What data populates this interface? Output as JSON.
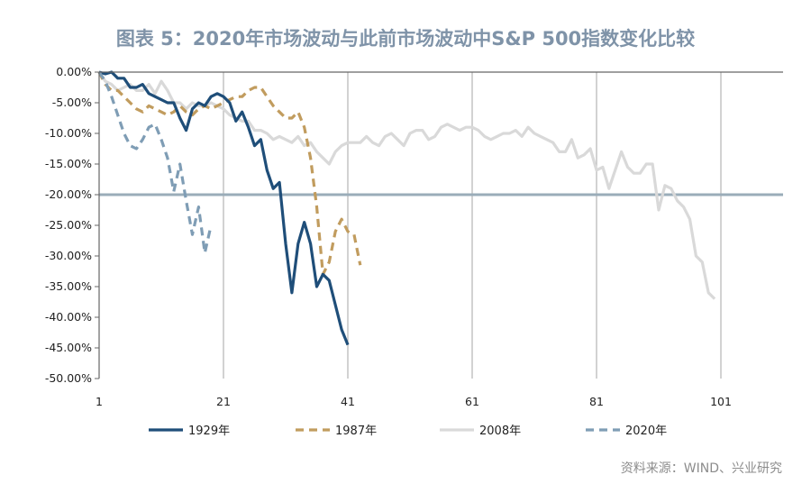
{
  "chart_data": {
    "type": "line",
    "title": "图表 5：2020年市场波动与此前市场波动中S&P 500指数变化比较",
    "source": "资料来源：WIND、兴业研究",
    "xlabel": "",
    "ylabel": "",
    "xlim": [
      1,
      111
    ],
    "ylim": [
      -50,
      0
    ],
    "x_ticks": [
      "1",
      "21",
      "41",
      "61",
      "81",
      "101"
    ],
    "y_ticks": [
      "0.00%",
      "-5.00%",
      "-10.00%",
      "-15.00%",
      "-20.00%",
      "-25.00%",
      "-30.00%",
      "-35.00%",
      "-40.00%",
      "-45.00%",
      "-50.00%"
    ],
    "reference_line": -20,
    "reference_color": "#9aacb9",
    "grid": "vertical",
    "legend_position": "bottom",
    "title_color": "#7f93a8",
    "series": [
      {
        "name": "1929年",
        "color": "#1f4e79",
        "style": "solid",
        "values": [
          0,
          -0.3,
          0,
          -1,
          -1,
          -2.5,
          -2.5,
          -2,
          -3.5,
          -4,
          -4.5,
          -5,
          -5,
          -7.5,
          -9.5,
          -6,
          -5,
          -5.5,
          -4,
          -3.5,
          -4,
          -5,
          -8,
          -6.5,
          -9,
          -12,
          -11,
          -16,
          -19,
          -18,
          -28,
          -36,
          -28,
          -24.5,
          -28,
          -35,
          -33,
          -34,
          -38,
          -42,
          -44.5
        ]
      },
      {
        "name": "1987年",
        "color": "#c19c5e",
        "style": "dashed",
        "values": [
          0,
          -2,
          -3,
          -3,
          -4,
          -5,
          -6,
          -6.5,
          -5.5,
          -6,
          -6.5,
          -7,
          -6.5,
          -5.5,
          -6.5,
          -7,
          -6,
          -5.5,
          -6,
          -5.5,
          -5,
          -4.5,
          -4,
          -4,
          -3,
          -2.5,
          -2.5,
          -4,
          -5.5,
          -6.5,
          -7.5,
          -7.5,
          -6.5,
          -9,
          -14,
          -22,
          -33,
          -31,
          -26,
          -24,
          -26,
          -26.5,
          -31.5
        ]
      },
      {
        "name": "2008年",
        "color": "#d9d9d9",
        "style": "solid",
        "values": [
          0,
          -1.5,
          -2,
          -3,
          -2.5,
          -2,
          -3,
          -3,
          -2,
          -3.5,
          -1.5,
          -3,
          -5,
          -5,
          -6,
          -5,
          -5.5,
          -5.5,
          -5,
          -5.5,
          -6,
          -7,
          -7.5,
          -8,
          -8,
          -9.5,
          -9.5,
          -10,
          -11,
          -10.5,
          -11,
          -11.5,
          -10.5,
          -12,
          -11.5,
          -13,
          -14,
          -15,
          -13,
          -12,
          -11.5,
          -11.5,
          -11.5,
          -10.5,
          -11.5,
          -12,
          -10.5,
          -10,
          -11,
          -12,
          -10,
          -9.5,
          -9.5,
          -11,
          -10.5,
          -9,
          -8.5,
          -9,
          -9.5,
          -9,
          -9,
          -9.5,
          -10.5,
          -11,
          -10.5,
          -10,
          -10,
          -9.5,
          -10.5,
          -9,
          -10,
          -10.5,
          -11,
          -11.5,
          -13,
          -13,
          -11,
          -14,
          -13.5,
          -12.5,
          -16,
          -15.5,
          -19,
          -16,
          -13,
          -15.5,
          -16.5,
          -16.5,
          -15,
          -15,
          -22.5,
          -18.5,
          -19,
          -21,
          -22,
          -24,
          -30,
          -31,
          -36,
          -37
        ]
      },
      {
        "name": "2020年",
        "color": "#7f9db5",
        "style": "dashed",
        "values": [
          0,
          -1.5,
          -4,
          -7,
          -10,
          -12,
          -12.5,
          -11,
          -9,
          -8.5,
          -11,
          -14,
          -19.5,
          -15,
          -21,
          -26.5,
          -22,
          -29.5,
          -25
        ]
      }
    ]
  }
}
